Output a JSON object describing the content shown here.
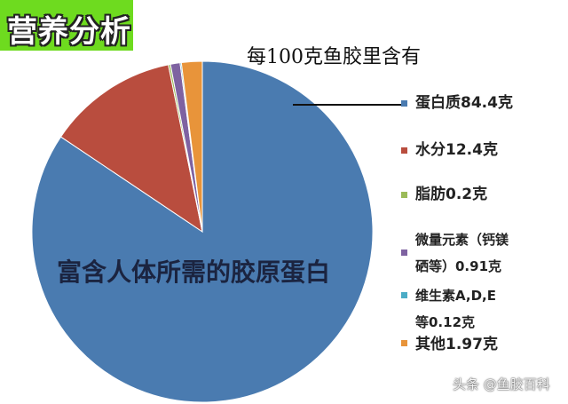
{
  "badge": "营养分析",
  "chart_data": {
    "type": "pie",
    "title": "每100克鱼胶里含有",
    "start": "top",
    "direction": "clockwise",
    "slices": [
      {
        "label": "蛋白质84.4克",
        "value": 84.4,
        "color": "#4a7bb0"
      },
      {
        "label": "水分12.4克",
        "value": 12.4,
        "color": "#b94d3e"
      },
      {
        "label": "脂肪0.2克",
        "value": 0.2,
        "color": "#9bbb59"
      },
      {
        "label_line1": "微量元素（钙镁",
        "label_line2": "硒等）0.91克",
        "value": 0.91,
        "color": "#7e62a1"
      },
      {
        "label_line1": "维生素A,D,E",
        "label_line2": "等0.12克",
        "value": 0.12,
        "color": "#4bacc6"
      },
      {
        "label": "其他1.97克",
        "value": 1.97,
        "color": "#e8943a"
      }
    ],
    "annotation": "富含人体所需的胶原蛋白",
    "legend": "right"
  },
  "watermark": "头条 @鱼胶百科"
}
